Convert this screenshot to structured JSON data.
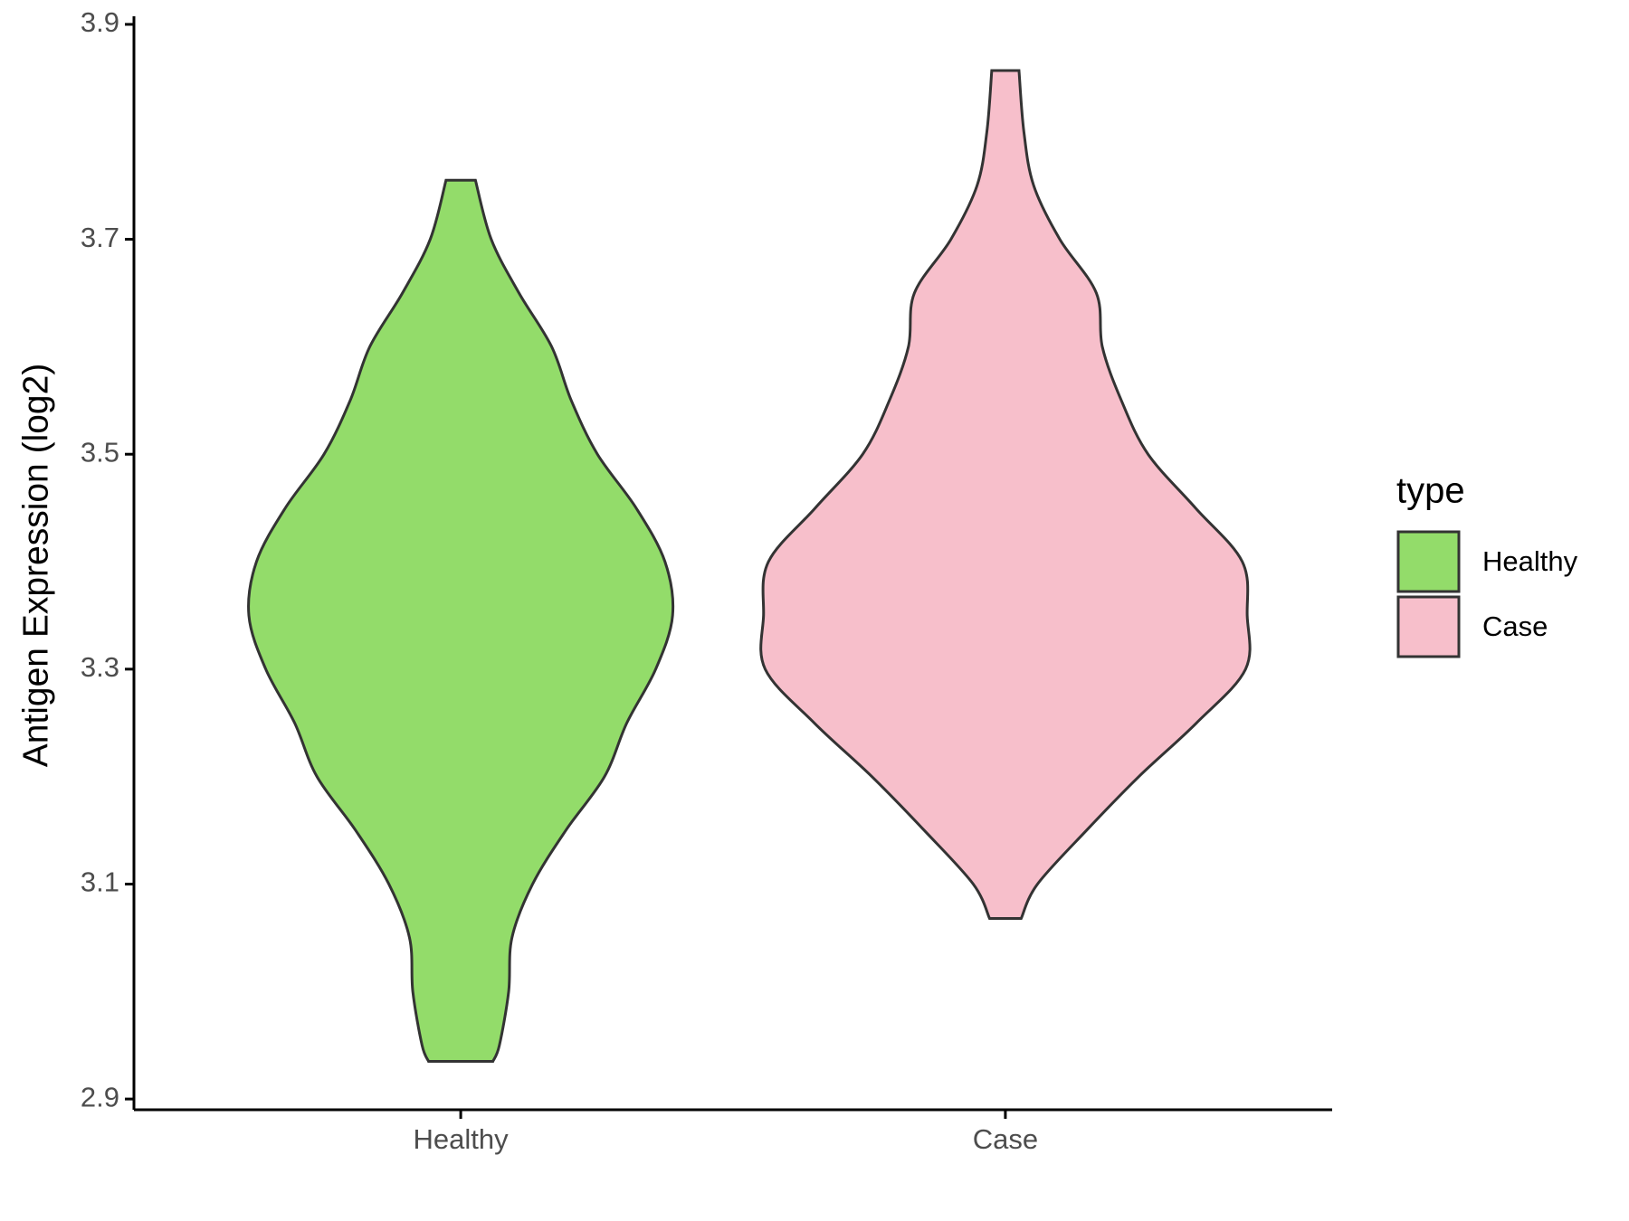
{
  "chart_data": {
    "type": "violin",
    "y_label": "Antigen Expression (log2)",
    "categories": [
      "Healthy",
      "Case"
    ],
    "legend_title": "type",
    "legend": "right",
    "series": [
      {
        "name": "Healthy",
        "color": "#93dc6a",
        "values": [
          3.755,
          3.7,
          3.65,
          3.6,
          3.55,
          3.5,
          3.45,
          3.4,
          3.35,
          3.3,
          3.25,
          3.2,
          3.15,
          3.1,
          3.05,
          3.0,
          2.95,
          2.935
        ],
        "widths": [
          0.027,
          0.056,
          0.107,
          0.167,
          0.203,
          0.251,
          0.322,
          0.375,
          0.389,
          0.358,
          0.305,
          0.264,
          0.193,
          0.132,
          0.094,
          0.088,
          0.071,
          0.059
        ]
      },
      {
        "name": "Case",
        "color": "#f7bfcb",
        "values": [
          3.857,
          3.8,
          3.75,
          3.7,
          3.65,
          3.6,
          3.55,
          3.5,
          3.45,
          3.4,
          3.35,
          3.3,
          3.25,
          3.2,
          3.15,
          3.1,
          3.068
        ],
        "widths": [
          0.025,
          0.034,
          0.052,
          0.1,
          0.167,
          0.178,
          0.213,
          0.262,
          0.349,
          0.435,
          0.444,
          0.441,
          0.351,
          0.245,
          0.149,
          0.059,
          0.029
        ]
      }
    ],
    "ylim": [
      2.89,
      3.905
    ],
    "yticks": [
      2.9,
      3.1,
      3.3,
      3.5,
      3.7,
      3.9
    ]
  }
}
